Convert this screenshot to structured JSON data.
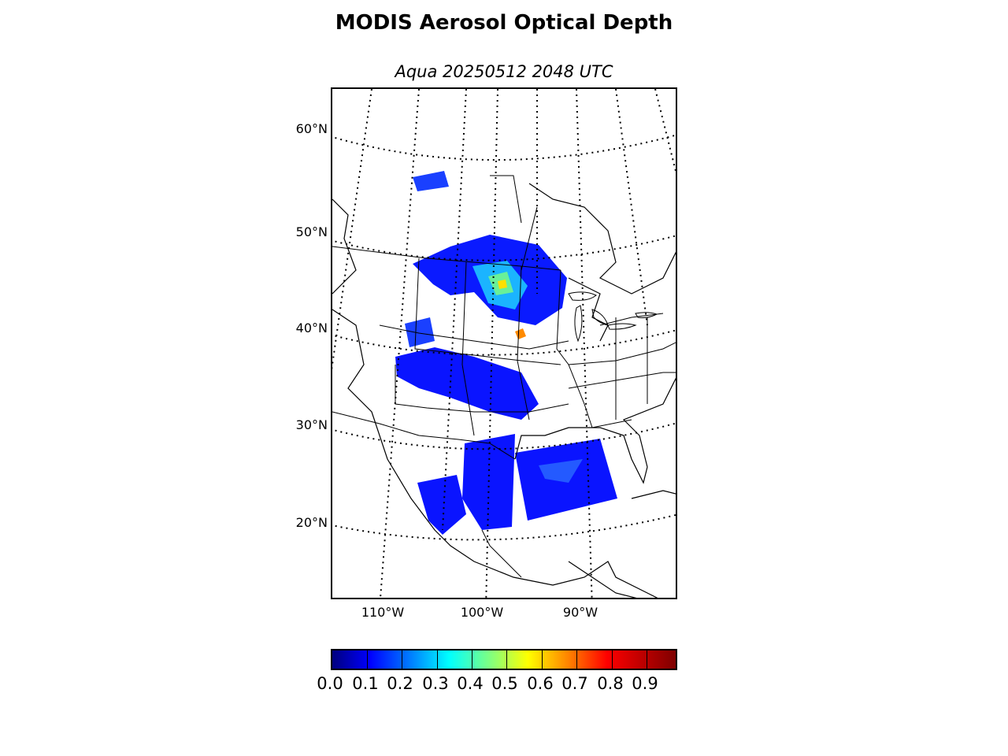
{
  "figure": {
    "title": "MODIS Aerosol Optical Depth",
    "subtitle": "Aqua 20250512 2048 UTC"
  },
  "map": {
    "lat_labels": [
      "60°N",
      "50°N",
      "40°N",
      "30°N",
      "20°N"
    ],
    "lon_labels": [
      "110°W",
      "100°W",
      "90°W"
    ],
    "features": [
      "coastlines",
      "country-borders",
      "state-borders",
      "graticule-dotted"
    ],
    "data_color_scale": "jet"
  },
  "colorbar": {
    "tick_labels": [
      "0.0",
      "0.1",
      "0.2",
      "0.3",
      "0.4",
      "0.5",
      "0.6",
      "0.7",
      "0.8",
      "0.9"
    ],
    "min": 0.0,
    "max": 0.99,
    "colormap": "jet",
    "colors": [
      "#00007f",
      "#0000ff",
      "#0080ff",
      "#00ffff",
      "#80ff80",
      "#ffff00",
      "#ff8000",
      "#ff0000",
      "#7f0000"
    ]
  }
}
